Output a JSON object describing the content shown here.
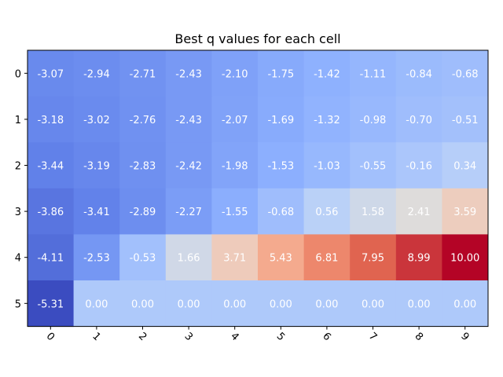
{
  "chart_data": {
    "type": "heatmap",
    "title": "Best q values for each cell",
    "xlabel": "",
    "ylabel": "",
    "x_categories": [
      "0",
      "1",
      "2",
      "3",
      "4",
      "5",
      "6",
      "7",
      "8",
      "9"
    ],
    "y_categories": [
      "0",
      "1",
      "2",
      "3",
      "4",
      "5"
    ],
    "values": [
      [
        -3.07,
        -2.94,
        -2.71,
        -2.43,
        -2.1,
        -1.75,
        -1.42,
        -1.11,
        -0.84,
        -0.68
      ],
      [
        -3.18,
        -3.02,
        -2.76,
        -2.43,
        -2.07,
        -1.69,
        -1.32,
        -0.98,
        -0.7,
        -0.51
      ],
      [
        -3.44,
        -3.19,
        -2.83,
        -2.42,
        -1.98,
        -1.53,
        -1.03,
        -0.55,
        -0.16,
        0.34
      ],
      [
        -3.86,
        -3.41,
        -2.89,
        -2.27,
        -1.55,
        -0.68,
        0.56,
        1.58,
        2.41,
        3.59
      ],
      [
        -4.11,
        -2.53,
        -0.53,
        1.66,
        3.71,
        5.43,
        6.81,
        7.95,
        8.99,
        10.0
      ],
      [
        -5.31,
        0.0,
        0.0,
        0.0,
        0.0,
        0.0,
        0.0,
        0.0,
        0.0,
        0.0
      ]
    ],
    "value_range": [
      -5.31,
      10.0
    ],
    "colormap": "coolwarm",
    "x_tick_rotation": 45,
    "grid": false,
    "legend": "none"
  }
}
